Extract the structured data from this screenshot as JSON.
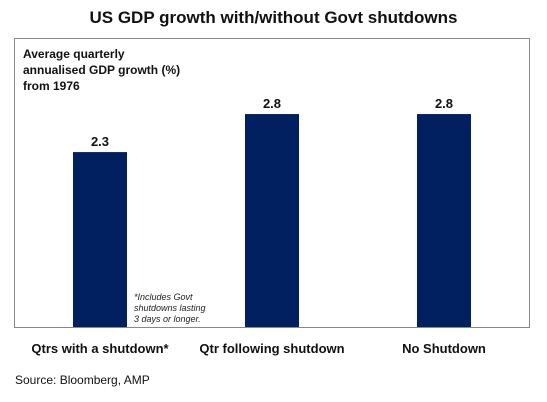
{
  "chart_data": {
    "type": "bar",
    "title": "US GDP growth with/without Govt shutdowns",
    "subtitle_lines": [
      "Average quarterly",
      "annualised GDP growth (%)",
      "from 1976"
    ],
    "categories": [
      "Qtrs with a shutdown*",
      "Qtr following shutdown",
      "No Shutdown"
    ],
    "values": [
      2.3,
      2.8,
      2.8
    ],
    "data_labels": [
      "2.3",
      "2.8",
      "2.8"
    ],
    "ylim": [
      0,
      3.8
    ],
    "grid": false,
    "bar_color": "#002060",
    "footnote_lines": [
      "*Includes Govt",
      "shutdowns lasting",
      "3 days or longer."
    ],
    "source": "Source: Bloomberg, AMP"
  }
}
